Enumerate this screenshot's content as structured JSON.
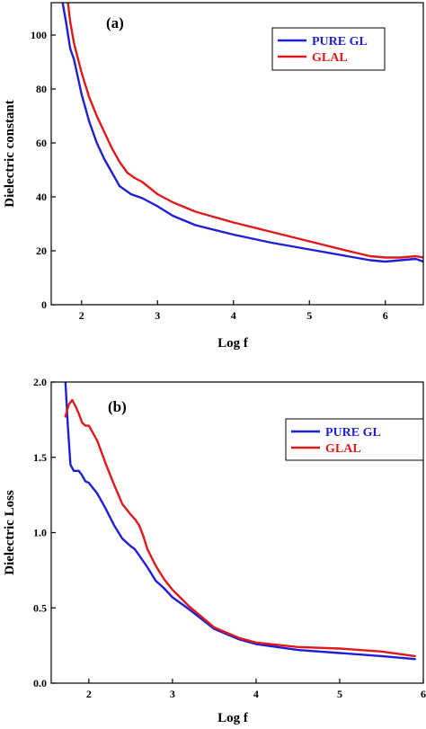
{
  "chart_data": [
    {
      "type": "line",
      "panel_label": "(a)",
      "xlabel": "Log f",
      "ylabel": "Dielectric constant",
      "xlim": [
        1.6,
        6.5
      ],
      "ylim": [
        0,
        112
      ],
      "x_ticks": [
        2,
        3,
        4,
        5,
        6
      ],
      "y_ticks": [
        0,
        20,
        40,
        60,
        80,
        100
      ],
      "grid": false,
      "legend_position": "top-right",
      "series": [
        {
          "name": "PURE GL",
          "color": "#1f1fd6",
          "x": [
            1.75,
            1.8,
            1.85,
            1.9,
            2.0,
            2.1,
            2.2,
            2.3,
            2.4,
            2.5,
            2.55,
            2.6,
            2.65,
            2.7,
            2.8,
            3.0,
            3.2,
            3.5,
            4.0,
            4.5,
            5.0,
            5.5,
            5.8,
            6.0,
            6.2,
            6.4,
            6.5
          ],
          "y": [
            112,
            104,
            95,
            91,
            78,
            68,
            60,
            54,
            49,
            44,
            43,
            42,
            41,
            40.5,
            39.5,
            36.5,
            33,
            29.5,
            26,
            23,
            20.5,
            18,
            16.5,
            16,
            16.5,
            17,
            16
          ]
        },
        {
          "name": "GLAL",
          "color": "#e01a1a",
          "x": [
            1.82,
            1.85,
            1.9,
            2.0,
            2.1,
            2.2,
            2.3,
            2.4,
            2.5,
            2.55,
            2.6,
            2.65,
            2.7,
            2.8,
            3.0,
            3.2,
            3.5,
            4.0,
            4.5,
            5.0,
            5.5,
            5.8,
            6.0,
            6.2,
            6.4,
            6.5
          ],
          "y": [
            112,
            105,
            97,
            86,
            77,
            70,
            64,
            58,
            53,
            51,
            49,
            48,
            47,
            45.5,
            41,
            38,
            34.5,
            30.5,
            27,
            23.5,
            20,
            18,
            17.5,
            17.5,
            18,
            17.5
          ]
        }
      ]
    },
    {
      "type": "line",
      "panel_label": "(b)",
      "xlabel": "Log f",
      "ylabel": "Dielectric Loss",
      "xlim": [
        1.55,
        6.0
      ],
      "ylim": [
        0.0,
        2.0
      ],
      "x_ticks": [
        2,
        3,
        4,
        5,
        6
      ],
      "y_ticks": [
        0.0,
        0.5,
        1.0,
        1.5,
        2.0
      ],
      "x_tick_labels": [
        "2",
        "3",
        "4",
        "5",
        "6"
      ],
      "y_tick_labels": [
        "0.0",
        "0.5",
        "1.0",
        "1.5",
        "2.0"
      ],
      "grid": false,
      "legend_position": "top-right",
      "series": [
        {
          "name": "PURE GL",
          "color": "#1f1fd6",
          "x": [
            1.72,
            1.75,
            1.78,
            1.82,
            1.88,
            1.92,
            1.96,
            2.0,
            2.1,
            2.2,
            2.3,
            2.4,
            2.5,
            2.55,
            2.6,
            2.7,
            2.8,
            2.9,
            3.0,
            3.2,
            3.5,
            3.8,
            4.0,
            4.5,
            5.0,
            5.5,
            5.9
          ],
          "y": [
            2.0,
            1.7,
            1.45,
            1.41,
            1.41,
            1.38,
            1.34,
            1.33,
            1.26,
            1.16,
            1.05,
            0.96,
            0.91,
            0.89,
            0.85,
            0.77,
            0.68,
            0.63,
            0.57,
            0.49,
            0.36,
            0.29,
            0.26,
            0.22,
            0.2,
            0.18,
            0.16
          ]
        },
        {
          "name": "GLAL",
          "color": "#e01a1a",
          "x": [
            1.72,
            1.76,
            1.8,
            1.84,
            1.88,
            1.92,
            1.96,
            2.0,
            2.1,
            2.2,
            2.3,
            2.4,
            2.5,
            2.55,
            2.6,
            2.65,
            2.7,
            2.8,
            2.9,
            3.0,
            3.2,
            3.5,
            3.8,
            4.0,
            4.5,
            5.0,
            5.5,
            5.9
          ],
          "y": [
            1.77,
            1.85,
            1.88,
            1.84,
            1.79,
            1.73,
            1.71,
            1.71,
            1.61,
            1.46,
            1.32,
            1.19,
            1.12,
            1.09,
            1.05,
            0.98,
            0.89,
            0.78,
            0.69,
            0.62,
            0.51,
            0.37,
            0.3,
            0.27,
            0.24,
            0.23,
            0.21,
            0.18
          ]
        }
      ]
    }
  ]
}
